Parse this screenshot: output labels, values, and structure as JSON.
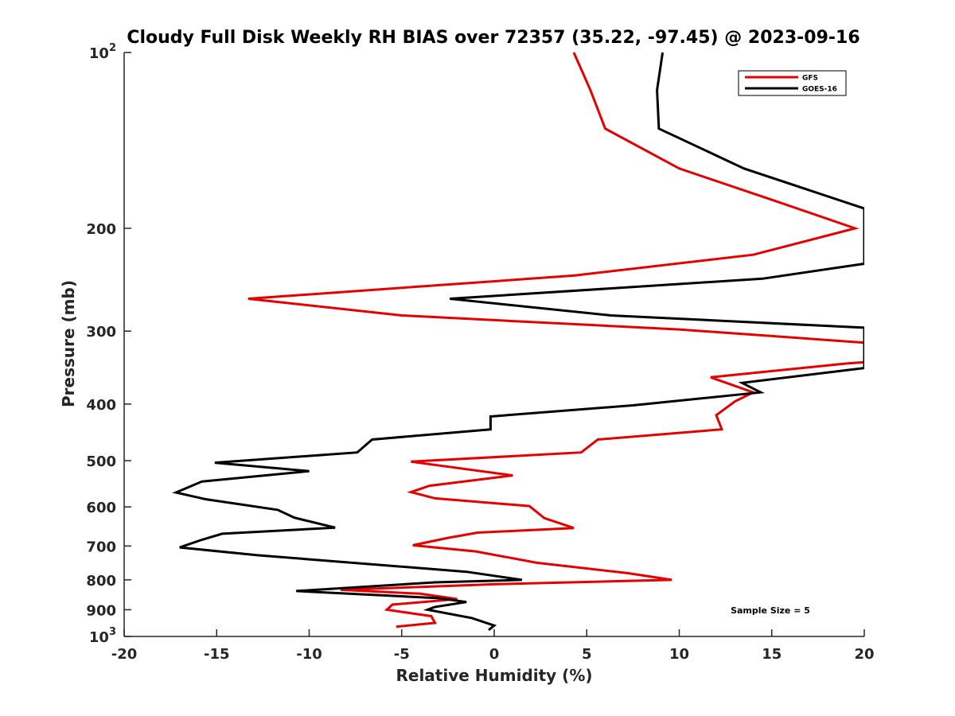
{
  "chart_data": {
    "type": "line",
    "title": "Cloudy Full Disk Weekly RH BIAS over 72357 (35.22, -97.45) @ 2023-09-16",
    "xlabel": "Relative Humidity (%)",
    "ylabel": "Pressure (mb)",
    "xlim": [
      -20,
      20
    ],
    "ylim": [
      1000,
      100
    ],
    "y_scale": "log",
    "y_reversed": true,
    "grid": false,
    "legend_position": "top-right",
    "x_ticks": [
      -20,
      -15,
      -10,
      -5,
      0,
      5,
      10,
      15,
      20
    ],
    "x_tick_labels": [
      "-20",
      "-15",
      "-10",
      "-5",
      "0",
      "5",
      "10",
      "15",
      "20"
    ],
    "y_ticks": [
      100,
      200,
      300,
      400,
      500,
      600,
      700,
      800,
      900,
      1000
    ],
    "y_tick_labels": [
      {
        "base": "10",
        "exp": "2"
      },
      {
        "base": "200",
        "exp": ""
      },
      {
        "base": "300",
        "exp": ""
      },
      {
        "base": "400",
        "exp": ""
      },
      {
        "base": "500",
        "exp": ""
      },
      {
        "base": "600",
        "exp": ""
      },
      {
        "base": "700",
        "exp": ""
      },
      {
        "base": "800",
        "exp": ""
      },
      {
        "base": "900",
        "exp": ""
      },
      {
        "base": "10",
        "exp": "3"
      }
    ],
    "annotation": "Sample Size = 5",
    "series": [
      {
        "name": "GFS",
        "color": "#e60000",
        "points": [
          [
            4.3,
            100
          ],
          [
            5.2,
            116
          ],
          [
            6.0,
            135
          ],
          [
            10.0,
            158
          ],
          [
            15.5,
            181
          ],
          [
            19.5,
            200
          ],
          [
            14.0,
            222
          ],
          [
            4.3,
            241
          ],
          [
            -13.3,
            264
          ],
          [
            -5.0,
            282
          ],
          [
            10.0,
            298
          ],
          [
            20.0,
            314
          ],
          [
            20.0,
            339
          ],
          [
            19.0,
            341
          ],
          [
            11.7,
            360
          ],
          [
            14.0,
            382
          ],
          [
            13.0,
            396
          ],
          [
            12.0,
            418
          ],
          [
            12.3,
            442
          ],
          [
            5.6,
            460
          ],
          [
            4.7,
            484
          ],
          [
            -4.5,
            502
          ],
          [
            1.0,
            530
          ],
          [
            -3.5,
            552
          ],
          [
            -4.5,
            566
          ],
          [
            -3.2,
            580
          ],
          [
            1.9,
            598
          ],
          [
            2.7,
            627
          ],
          [
            4.3,
            652
          ],
          [
            -0.9,
            664
          ],
          [
            -2.5,
            678
          ],
          [
            -4.4,
            698
          ],
          [
            -1.0,
            715
          ],
          [
            2.3,
            748
          ],
          [
            7.2,
            779
          ],
          [
            9.6,
            800
          ],
          [
            0.0,
            814
          ],
          [
            -8.3,
            832
          ],
          [
            -4.0,
            845
          ],
          [
            -2.0,
            863
          ],
          [
            -5.5,
            882
          ],
          [
            -5.8,
            900
          ],
          [
            -3.4,
            923
          ],
          [
            -3.2,
            948
          ],
          [
            -5.3,
            962
          ]
        ]
      },
      {
        "name": "GOES-16",
        "color": "#000000",
        "points": [
          [
            9.1,
            100
          ],
          [
            8.8,
            116
          ],
          [
            8.9,
            135
          ],
          [
            13.5,
            158
          ],
          [
            20.0,
            185
          ],
          [
            20.0,
            230
          ],
          [
            14.5,
            244
          ],
          [
            -2.4,
            264
          ],
          [
            6.3,
            282
          ],
          [
            20.0,
            296
          ],
          [
            20.0,
            347
          ],
          [
            13.4,
            368
          ],
          [
            14.4,
            382
          ],
          [
            7.5,
            402
          ],
          [
            -0.2,
            420
          ],
          [
            -0.2,
            442
          ],
          [
            -6.6,
            460
          ],
          [
            -7.4,
            484
          ],
          [
            -15.1,
            504
          ],
          [
            -10.0,
            521
          ],
          [
            -15.8,
            543
          ],
          [
            -17.2,
            567
          ],
          [
            -15.6,
            582
          ],
          [
            -11.7,
            607
          ],
          [
            -10.8,
            626
          ],
          [
            -8.6,
            651
          ],
          [
            -14.7,
            667
          ],
          [
            -15.8,
            683
          ],
          [
            -17.0,
            704
          ],
          [
            -12.8,
            726
          ],
          [
            -1.5,
            775
          ],
          [
            1.5,
            800
          ],
          [
            -3.2,
            808
          ],
          [
            -10.7,
            836
          ],
          [
            -3.0,
            860
          ],
          [
            -1.5,
            873
          ],
          [
            -3.2,
            890
          ],
          [
            -3.6,
            900
          ],
          [
            -1.2,
            930
          ],
          [
            0.0,
            958
          ],
          [
            -0.3,
            975
          ]
        ]
      }
    ]
  }
}
